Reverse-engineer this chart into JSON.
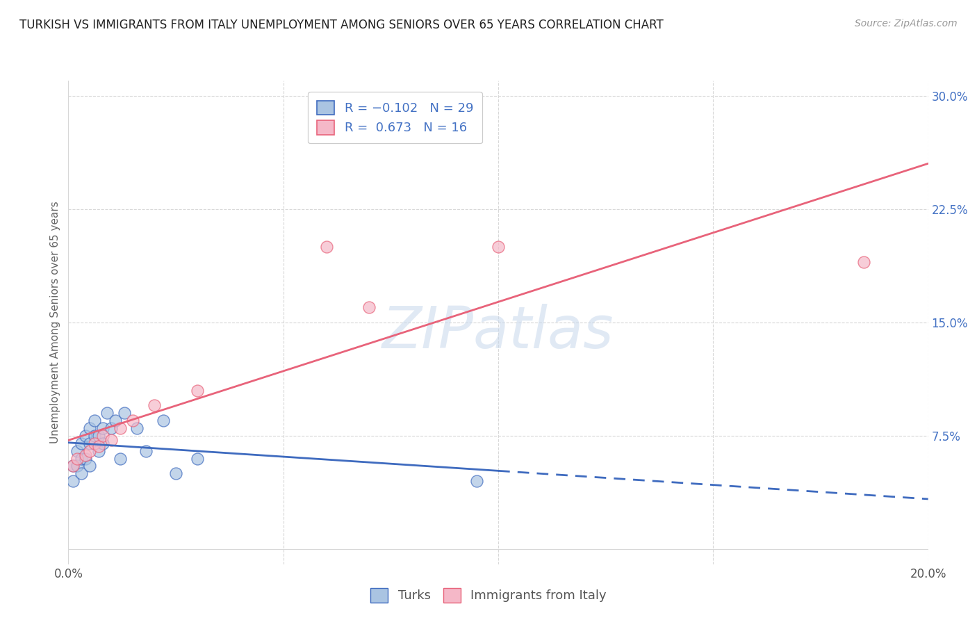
{
  "title": "TURKISH VS IMMIGRANTS FROM ITALY UNEMPLOYMENT AMONG SENIORS OVER 65 YEARS CORRELATION CHART",
  "source": "Source: ZipAtlas.com",
  "ylabel": "Unemployment Among Seniors over 65 years",
  "xlim": [
    0.0,
    0.2
  ],
  "ylim": [
    -0.01,
    0.31
  ],
  "xticks": [
    0.0,
    0.05,
    0.1,
    0.15,
    0.2
  ],
  "yticks": [
    0.0,
    0.075,
    0.15,
    0.225,
    0.3
  ],
  "turks_x": [
    0.001,
    0.001,
    0.002,
    0.002,
    0.003,
    0.003,
    0.003,
    0.004,
    0.004,
    0.005,
    0.005,
    0.005,
    0.006,
    0.006,
    0.007,
    0.007,
    0.008,
    0.008,
    0.009,
    0.01,
    0.011,
    0.012,
    0.013,
    0.016,
    0.018,
    0.022,
    0.025,
    0.03,
    0.095
  ],
  "turks_y": [
    0.055,
    0.045,
    0.065,
    0.055,
    0.07,
    0.06,
    0.05,
    0.075,
    0.06,
    0.08,
    0.07,
    0.055,
    0.085,
    0.075,
    0.075,
    0.065,
    0.08,
    0.07,
    0.09,
    0.08,
    0.085,
    0.06,
    0.09,
    0.08,
    0.065,
    0.085,
    0.05,
    0.06,
    0.045
  ],
  "italy_x": [
    0.001,
    0.002,
    0.004,
    0.005,
    0.006,
    0.007,
    0.008,
    0.01,
    0.012,
    0.015,
    0.02,
    0.03,
    0.06,
    0.07,
    0.1,
    0.185
  ],
  "italy_y": [
    0.055,
    0.06,
    0.062,
    0.065,
    0.07,
    0.068,
    0.075,
    0.072,
    0.08,
    0.085,
    0.095,
    0.105,
    0.2,
    0.16,
    0.2,
    0.19
  ],
  "turks_R": -0.102,
  "turks_N": 29,
  "italy_R": 0.673,
  "italy_N": 16,
  "turks_color": "#aac4e2",
  "italy_color": "#f5b8c8",
  "turks_line_color": "#3f6bbf",
  "italy_line_color": "#e8637a",
  "turks_line_solid_end": 0.1,
  "watermark": "ZIPatlas",
  "background_color": "#ffffff",
  "grid_color": "#d8d8d8"
}
